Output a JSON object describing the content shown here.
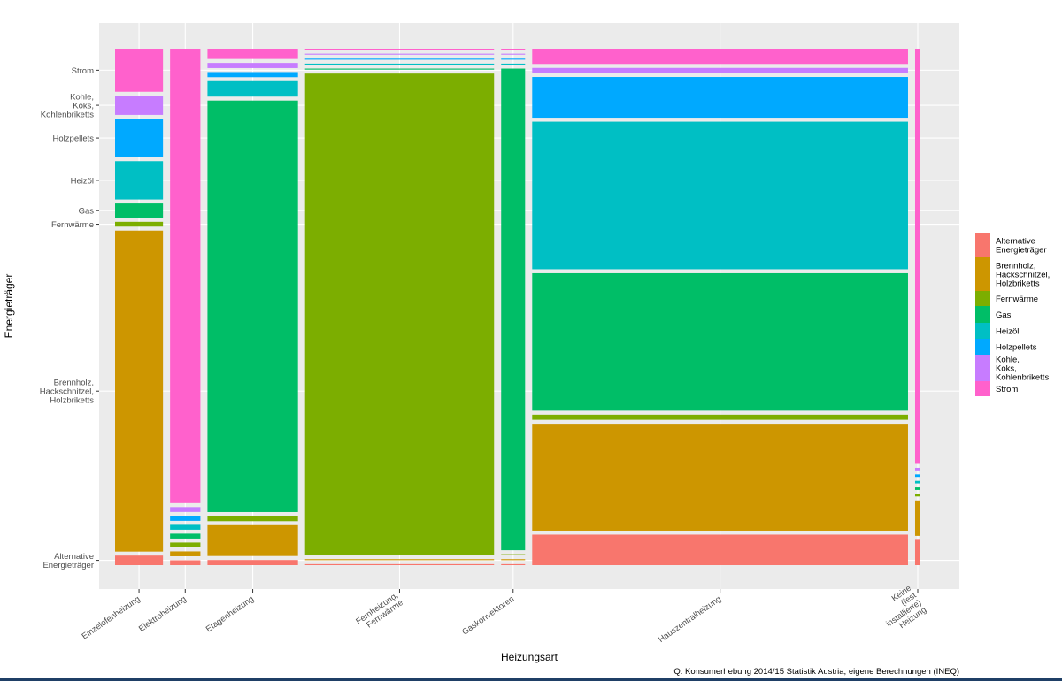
{
  "chart_data": {
    "type": "mosaic",
    "xlabel": "Heizungsart",
    "ylabel": "Energieträger",
    "caption": "Q: Konsumerhebung 2014/15 Statistik Austria, eigene Berechnungen (INEQ)",
    "legend_position": "right",
    "energy_order": [
      "Alternative Energieträger",
      "Brennholz, Hackschnitzel, Holzbriketts",
      "Fernwärme",
      "Gas",
      "Heizöl",
      "Holzpellets",
      "Kohle, Koks, Kohlenbriketts",
      "Strom"
    ],
    "legend": [
      {
        "key": "alt",
        "label_lines": [
          "Alternative",
          "Energieträger"
        ],
        "color": "#F8766D"
      },
      {
        "key": "holz",
        "label_lines": [
          "Brennholz,",
          "Hackschnitzel,",
          "Holzbriketts"
        ],
        "color": "#CD9600"
      },
      {
        "key": "fern",
        "label_lines": [
          "Fernwärme"
        ],
        "color": "#7CAE00"
      },
      {
        "key": "gas",
        "label_lines": [
          "Gas"
        ],
        "color": "#00BE67"
      },
      {
        "key": "oel",
        "label_lines": [
          "Heizöl"
        ],
        "color": "#00BFC4"
      },
      {
        "key": "pellets",
        "label_lines": [
          "Holzpellets"
        ],
        "color": "#00A9FF"
      },
      {
        "key": "kohle",
        "label_lines": [
          "Kohle,",
          "Koks,",
          "Kohlenbriketts"
        ],
        "color": "#C77CFF"
      },
      {
        "key": "strom",
        "label_lines": [
          "Strom"
        ],
        "color": "#FF61CC"
      }
    ],
    "y_ticks": [
      {
        "label_lines": [
          "Strom"
        ],
        "key": "strom"
      },
      {
        "label_lines": [
          "Kohle,",
          "Koks,",
          "Kohlenbriketts"
        ],
        "key": "kohle"
      },
      {
        "label_lines": [
          "Holzpellets"
        ],
        "key": "pellets"
      },
      {
        "label_lines": [
          "Heizöl"
        ],
        "key": "oel"
      },
      {
        "label_lines": [
          "Gas"
        ],
        "key": "gas"
      },
      {
        "label_lines": [
          "Fernwärme"
        ],
        "key": "fern"
      },
      {
        "label_lines": [
          "Brennholz,",
          "Hackschnitzel,",
          "Holzbriketts"
        ],
        "key": "holz"
      },
      {
        "label_lines": [
          "Alternative",
          "Energieträger"
        ],
        "key": "alt"
      }
    ],
    "categories": [
      {
        "name": "Einzelofenheizung",
        "label_lines": [
          "Einzelofenheizung"
        ],
        "share": 0.09,
        "values": {
          "alt": 0.02,
          "holz": 0.67,
          "fern": 0.01,
          "gas": 0.03,
          "oel": 0.08,
          "pellets": 0.08,
          "kohle": 0.04,
          "strom": 0.09
        }
      },
      {
        "name": "Elektroheizung",
        "label_lines": [
          "Elektroheizung"
        ],
        "share": 0.057,
        "values": {
          "alt": 0.01,
          "holz": 0.01,
          "fern": 0.01,
          "gas": 0.01,
          "oel": 0.01,
          "pellets": 0.01,
          "kohle": 0.01,
          "strom": 0.93
        }
      },
      {
        "name": "Etagenheizung",
        "label_lines": [
          "Etagenheizung"
        ],
        "share": 0.17,
        "values": {
          "alt": 0.01,
          "holz": 0.06,
          "fern": 0.01,
          "gas": 0.8,
          "oel": 0.03,
          "pellets": 0.01,
          "kohle": 0.01,
          "strom": 0.02
        }
      },
      {
        "name": "Fernheizung, Fernwärme",
        "label_lines": [
          "Fernheizung,",
          "Fernwärme"
        ],
        "share": 0.355,
        "values": {
          "alt": 0.002,
          "holz": 0.002,
          "fern": 0.96,
          "gas": 0.002,
          "oel": 0.002,
          "pellets": 0.002,
          "kohle": 0.002,
          "strom": 0.002
        }
      },
      {
        "name": "Gaskonvektoren",
        "label_lines": [
          "Gaskonvektoren"
        ],
        "share": 0.045,
        "values": {
          "alt": 0.002,
          "holz": 0.002,
          "fern": 0.002,
          "gas": 0.962,
          "oel": 0.002,
          "pellets": 0.002,
          "kohle": 0.002,
          "strom": 0.002
        }
      },
      {
        "name": "Hauszentralheizung",
        "label_lines": [
          "Hauszentralheizung"
        ],
        "share": 0.706,
        "values": {
          "alt": 0.06,
          "holz": 0.21,
          "fern": 0.01,
          "gas": 0.27,
          "oel": 0.29,
          "pellets": 0.08,
          "kohle": 0.01,
          "strom": 0.03
        }
      },
      {
        "name": "Keine (fest installierte) Heizung",
        "label_lines": [
          "Keine",
          "(fest",
          "installierte)",
          "Heizung"
        ],
        "share": 0.01,
        "values": {
          "alt": 0.05,
          "holz": 0.07,
          "fern": 0.005,
          "gas": 0.005,
          "oel": 0.005,
          "pellets": 0.005,
          "kohle": 0.005,
          "strom": 0.82
        }
      }
    ]
  }
}
